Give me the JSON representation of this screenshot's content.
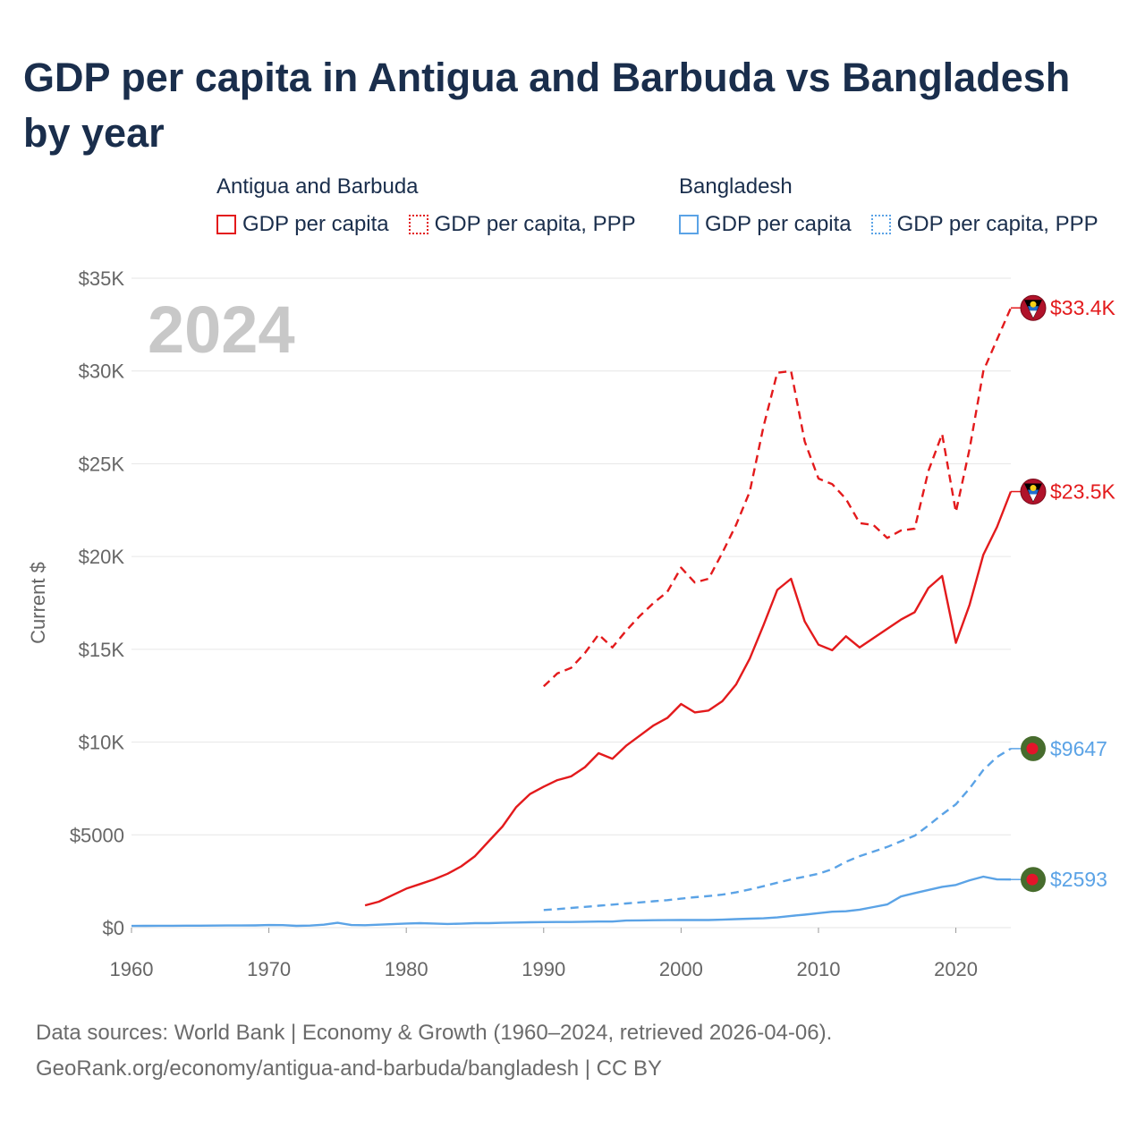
{
  "title": "GDP per capita in Antigua and Barbuda vs Bangladesh by year",
  "legend": {
    "groups": [
      {
        "name": "Antigua and Barbuda",
        "items": [
          {
            "label": "GDP per capita",
            "style": "solid",
            "color": "#e31a1c"
          },
          {
            "label": "GDP per capita, PPP",
            "style": "dotted",
            "color": "#e31a1c"
          }
        ]
      },
      {
        "name": "Bangladesh",
        "items": [
          {
            "label": "GDP per capita",
            "style": "solid",
            "color": "#5ba3e6"
          },
          {
            "label": "GDP per capita, PPP",
            "style": "dotted",
            "color": "#5ba3e6"
          }
        ]
      }
    ]
  },
  "footer": {
    "line1": "Data sources: World Bank | Economy & Growth (1960–2024, retrieved 2026-04-06).",
    "line2": "GeoRank.org/economy/antigua-and-barbuda/bangladesh | CC BY"
  },
  "colors": {
    "antigua": "#e31a1c",
    "bangladesh": "#5ba3e6",
    "title": "#1a2e4c",
    "grid": "#e6e6e6",
    "muted": "#666666",
    "year_watermark": "#c8c8c8"
  },
  "chart_data": {
    "type": "line",
    "title": "GDP per capita in Antigua and Barbuda vs Bangladesh by year",
    "current_year_label": "2024",
    "xlabel": "",
    "ylabel": "Current $",
    "xlim": [
      1960,
      2024
    ],
    "ylim": [
      0,
      35000
    ],
    "x_ticks": [
      1960,
      1970,
      1980,
      1990,
      2000,
      2010,
      2020
    ],
    "x_tick_labels": [
      "1960",
      "1970",
      "1980",
      "1990",
      "2000",
      "2010",
      "2020"
    ],
    "y_ticks": [
      0,
      5000,
      10000,
      15000,
      20000,
      25000,
      30000,
      35000
    ],
    "y_tick_labels": [
      "$0",
      "$5000",
      "$10K",
      "$15K",
      "$20K",
      "$25K",
      "$30K",
      "$35K"
    ],
    "grid": true,
    "series": [
      {
        "name": "Antigua and Barbuda — GDP per capita",
        "country": "Antigua and Barbuda",
        "indicator": "GDP per capita",
        "color": "#e31a1c",
        "dash": "solid",
        "flag": "antigua-flag",
        "end_label": "$23.5K",
        "x": [
          1977,
          1978,
          1979,
          1980,
          1981,
          1982,
          1983,
          1984,
          1985,
          1986,
          1987,
          1988,
          1989,
          1990,
          1991,
          1992,
          1993,
          1994,
          1995,
          1996,
          1997,
          1998,
          1999,
          2000,
          2001,
          2002,
          2003,
          2004,
          2005,
          2006,
          2007,
          2008,
          2009,
          2010,
          2011,
          2012,
          2013,
          2014,
          2015,
          2016,
          2017,
          2018,
          2019,
          2020,
          2021,
          2022,
          2023,
          2024
        ],
        "values": [
          1200,
          1400,
          1750,
          2100,
          2350,
          2600,
          2900,
          3300,
          3850,
          4650,
          5450,
          6500,
          7200,
          7600,
          7950,
          8150,
          8650,
          9400,
          9100,
          9800,
          10350,
          10900,
          11300,
          12050,
          11600,
          11700,
          12200,
          13100,
          14500,
          16300,
          18200,
          18800,
          16500,
          15250,
          14950,
          15700,
          15100,
          15600,
          16100,
          16600,
          17000,
          18300,
          18950,
          15350,
          17400,
          20100,
          21600,
          23500
        ]
      },
      {
        "name": "Antigua and Barbuda — GDP per capita, PPP",
        "country": "Antigua and Barbuda",
        "indicator": "GDP per capita, PPP",
        "color": "#e31a1c",
        "dash": "dashed",
        "flag": "antigua-flag",
        "end_label": "$33.4K",
        "x": [
          1990,
          1991,
          1992,
          1993,
          1994,
          1995,
          1996,
          1997,
          1998,
          1999,
          2000,
          2001,
          2002,
          2003,
          2004,
          2005,
          2006,
          2007,
          2008,
          2009,
          2010,
          2011,
          2012,
          2013,
          2014,
          2015,
          2016,
          2017,
          2018,
          2019,
          2020,
          2021,
          2022,
          2023,
          2024
        ],
        "values": [
          13000,
          13700,
          14000,
          14800,
          15800,
          15100,
          16000,
          16800,
          17500,
          18100,
          19400,
          18600,
          18800,
          20200,
          21700,
          23500,
          27000,
          29900,
          30000,
          26200,
          24200,
          23900,
          23100,
          21800,
          21700,
          21000,
          21400,
          21500,
          24600,
          26600,
          22400,
          25800,
          30000,
          31700,
          33400
        ]
      },
      {
        "name": "Bangladesh — GDP per capita",
        "country": "Bangladesh",
        "indicator": "GDP per capita",
        "color": "#5ba3e6",
        "dash": "solid",
        "flag": "bangladesh-flag",
        "end_label": "$2593",
        "x": [
          1960,
          1961,
          1962,
          1963,
          1964,
          1965,
          1966,
          1967,
          1968,
          1969,
          1970,
          1971,
          1972,
          1973,
          1974,
          1975,
          1976,
          1977,
          1978,
          1979,
          1980,
          1981,
          1982,
          1983,
          1984,
          1985,
          1986,
          1987,
          1988,
          1989,
          1990,
          1991,
          1992,
          1993,
          1994,
          1995,
          1996,
          1997,
          1998,
          1999,
          2000,
          2001,
          2002,
          2003,
          2004,
          2005,
          2006,
          2007,
          2008,
          2009,
          2010,
          2011,
          2012,
          2013,
          2014,
          2015,
          2016,
          2017,
          2018,
          2019,
          2020,
          2021,
          2022,
          2023,
          2024
        ],
        "values": [
          90,
          95,
          100,
          100,
          105,
          105,
          110,
          115,
          115,
          120,
          140,
          135,
          95,
          110,
          160,
          260,
          140,
          130,
          160,
          190,
          220,
          240,
          220,
          200,
          210,
          240,
          240,
          260,
          275,
          290,
          300,
          305,
          305,
          320,
          330,
          330,
          380,
          390,
          400,
          405,
          410,
          410,
          410,
          430,
          460,
          480,
          500,
          550,
          630,
          700,
          780,
          860,
          880,
          970,
          1110,
          1250,
          1680,
          1860,
          2030,
          2200,
          2300,
          2550,
          2750,
          2600,
          2593
        ]
      },
      {
        "name": "Bangladesh — GDP per capita, PPP",
        "country": "Bangladesh",
        "indicator": "GDP per capita, PPP",
        "color": "#5ba3e6",
        "dash": "dashed",
        "flag": "bangladesh-flag",
        "end_label": "$9647",
        "x": [
          1990,
          1991,
          1992,
          1993,
          1994,
          1995,
          1996,
          1997,
          1998,
          1999,
          2000,
          2001,
          2002,
          2003,
          2004,
          2005,
          2006,
          2007,
          2008,
          2009,
          2010,
          2011,
          2012,
          2013,
          2014,
          2015,
          2016,
          2017,
          2018,
          2019,
          2020,
          2021,
          2022,
          2023,
          2024
        ],
        "values": [
          950,
          1000,
          1060,
          1120,
          1180,
          1240,
          1300,
          1360,
          1420,
          1480,
          1560,
          1640,
          1700,
          1780,
          1900,
          2060,
          2230,
          2420,
          2600,
          2750,
          2900,
          3150,
          3550,
          3850,
          4100,
          4350,
          4650,
          4950,
          5500,
          6100,
          6650,
          7500,
          8500,
          9200,
          9647
        ]
      }
    ]
  }
}
